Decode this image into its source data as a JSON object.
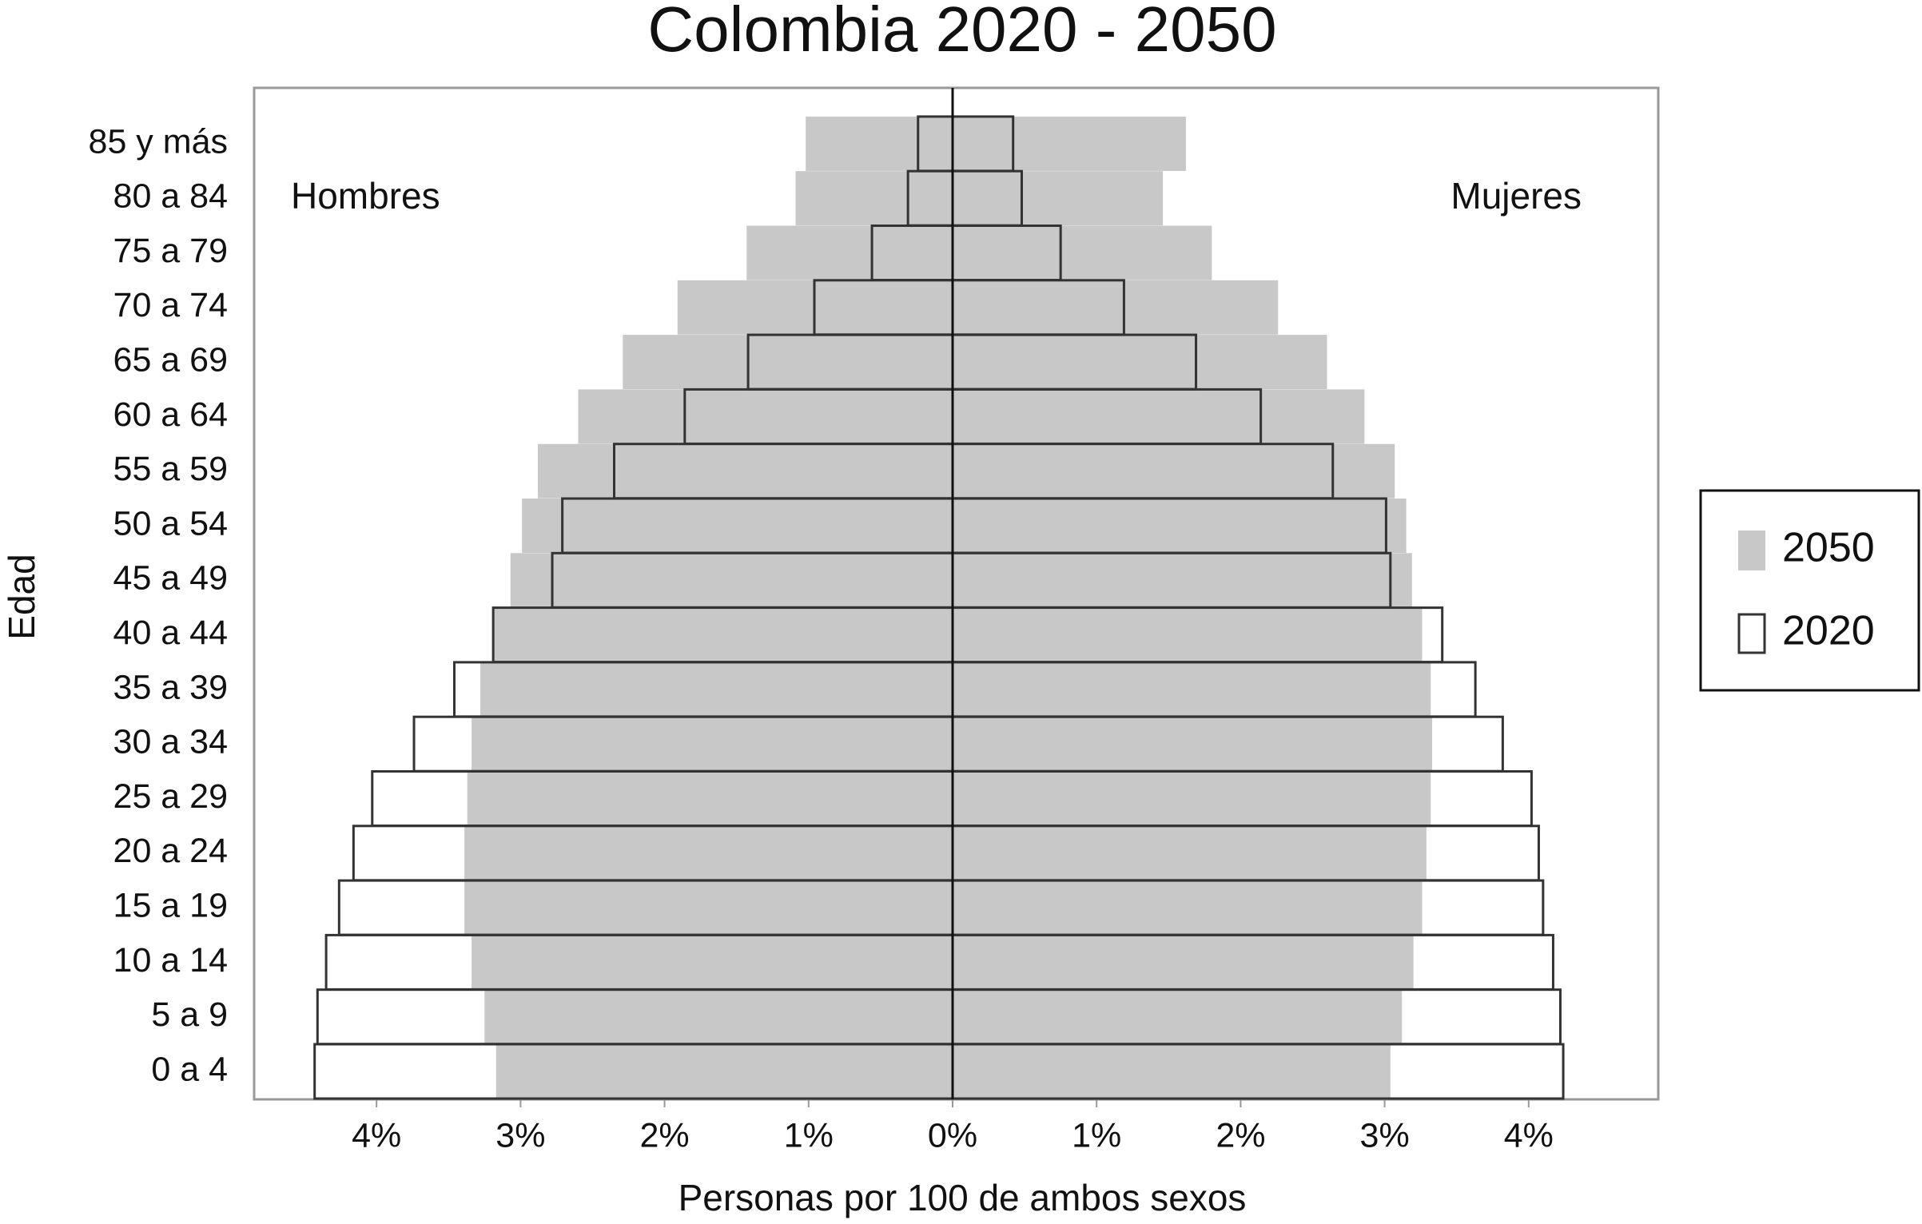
{
  "chart_data": {
    "type": "pyramid",
    "title": "Colombia 2020 - 2050",
    "x_label": "Personas por 100 de ambos sexos",
    "y_label": "Edad",
    "left_label": "Hombres",
    "right_label": "Mujeres",
    "categories": [
      "0 a 4",
      "5 a 9",
      "10 a 14",
      "15 a 19",
      "20 a 24",
      "25 a 29",
      "30 a 34",
      "35 a 39",
      "40 a 44",
      "45 a 49",
      "50 a 54",
      "55 a 59",
      "60 a 64",
      "65 a 69",
      "70 a 74",
      "75 a 79",
      "80 a 84",
      "85 y más"
    ],
    "series": [
      {
        "name": "2050",
        "color": "#c8c8c8",
        "hombres": [
          -3.17,
          -3.25,
          -3.34,
          -3.39,
          -3.39,
          -3.37,
          -3.34,
          -3.28,
          -3.19,
          -3.07,
          -2.99,
          -2.88,
          -2.6,
          -2.29,
          -1.91,
          -1.43,
          -1.09,
          -1.02
        ],
        "mujeres": [
          3.04,
          3.12,
          3.2,
          3.26,
          3.29,
          3.32,
          3.33,
          3.32,
          3.26,
          3.19,
          3.15,
          3.07,
          2.86,
          2.6,
          2.26,
          1.8,
          1.46,
          1.62
        ]
      },
      {
        "name": "2020",
        "color": "#333333",
        "hombres": [
          -4.43,
          -4.41,
          -4.35,
          -4.26,
          -4.16,
          -4.03,
          -3.74,
          -3.46,
          -3.19,
          -2.78,
          -2.71,
          -2.35,
          -1.86,
          -1.42,
          -0.96,
          -0.56,
          -0.31,
          -0.24
        ],
        "mujeres": [
          4.24,
          4.22,
          4.17,
          4.1,
          4.07,
          4.02,
          3.82,
          3.63,
          3.4,
          3.04,
          3.01,
          2.64,
          2.14,
          1.69,
          1.19,
          0.75,
          0.48,
          0.42
        ]
      }
    ],
    "xlim": [
      -4.85,
      4.9
    ],
    "xticks": [
      {
        "value": -4,
        "label": "4%"
      },
      {
        "value": -3,
        "label": "3%"
      },
      {
        "value": -2,
        "label": "2%"
      },
      {
        "value": -1,
        "label": "1%"
      },
      {
        "value": 0,
        "label": "0%"
      },
      {
        "value": 1,
        "label": "1%"
      },
      {
        "value": 2,
        "label": "2%"
      },
      {
        "value": 3,
        "label": "3%"
      },
      {
        "value": 4,
        "label": "4%"
      }
    ]
  }
}
